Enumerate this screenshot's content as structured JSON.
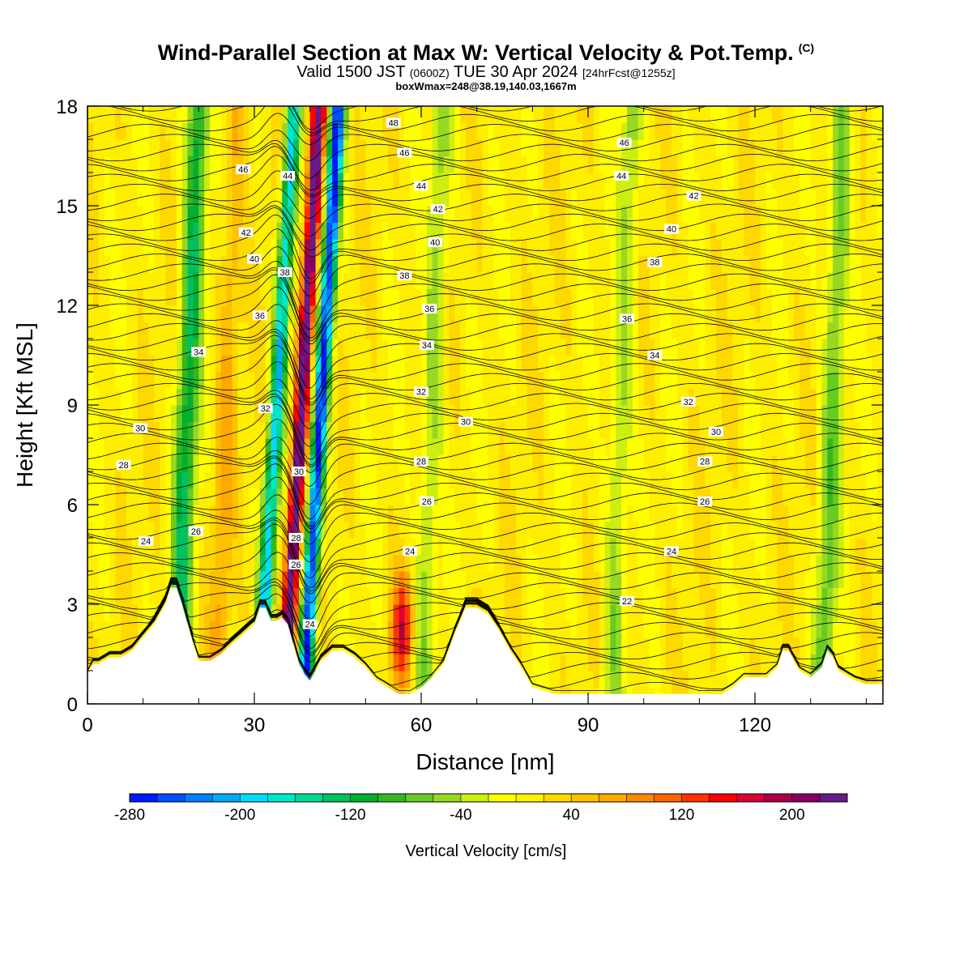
{
  "title": {
    "main": "Wind-Parallel Section at Max W: Vertical Velocity & Pot.Temp.",
    "mark": "(C)",
    "sub_a": "Valid 1500 JST",
    "sub_b": "(0600Z)",
    "sub_c": "TUE 30 Apr 2024",
    "sub_d": "[24hrFcst@1255z]",
    "small": "boxWmax=248@38.19,140.03,1667m"
  },
  "chart_data": {
    "type": "heatmap",
    "title": "Wind-Parallel Section at Max W: Vertical Velocity & Pot.Temp.",
    "xlabel": "Distance [nm]",
    "ylabel": "Height [Kft MSL]",
    "xlim": [
      0,
      143
    ],
    "ylim": [
      0,
      18
    ],
    "x_ticks": [
      0,
      30,
      60,
      90,
      120
    ],
    "y_ticks": [
      0,
      3,
      6,
      9,
      12,
      15,
      18
    ],
    "colorbar": {
      "label": "Vertical Velocity [cm/s]",
      "min": -280,
      "max": 240,
      "step": 20,
      "tick_labels": [
        "-280",
        "-200",
        "-120",
        "-40",
        "40",
        "120",
        "200"
      ],
      "colors": [
        "#0019ff",
        "#0050ff",
        "#0080ff",
        "#00aaff",
        "#00ddff",
        "#00e8cc",
        "#00d890",
        "#00c060",
        "#00b030",
        "#33b820",
        "#66cc22",
        "#99d822",
        "#ccee11",
        "#ffff00",
        "#ffee00",
        "#ffd800",
        "#ffc000",
        "#ffa800",
        "#ff8800",
        "#ff6600",
        "#ff3300",
        "#ff0000",
        "#dd0033",
        "#aa0044",
        "#880066",
        "#6a1a8a"
      ]
    },
    "velocity_features": [
      {
        "type": "downdraft",
        "x": 18,
        "peak": -130
      },
      {
        "type": "updraft",
        "x": 25,
        "peak": 50
      },
      {
        "type": "downdraft",
        "x": 34,
        "peak": -200
      },
      {
        "type": "updraft",
        "x": 38.5,
        "peak": 248
      },
      {
        "type": "downdraft",
        "x": 42,
        "peak": -280
      },
      {
        "type": "updraft",
        "x": 58,
        "peak": 150
      },
      {
        "type": "downdraft",
        "x": 62,
        "peak": -60
      },
      {
        "type": "downdraft",
        "x": 96,
        "peak": -60
      },
      {
        "type": "downdraft",
        "x": 134,
        "peak": -80
      }
    ],
    "terrain_kft": {
      "x": [
        0,
        1,
        2,
        4,
        6,
        8,
        10,
        12,
        14,
        15,
        16,
        17,
        18,
        19,
        20,
        22,
        24,
        26,
        28,
        30,
        31,
        32,
        33,
        34,
        35,
        36,
        37,
        38,
        39,
        40,
        41,
        42,
        44,
        46,
        48,
        50,
        52,
        54,
        56,
        58,
        60,
        62,
        64,
        66,
        68,
        70,
        72,
        74,
        76,
        78,
        80,
        84,
        90,
        100,
        110,
        114,
        116,
        118,
        120,
        122,
        124,
        125,
        126,
        127,
        128,
        130,
        132,
        133,
        134,
        135,
        136,
        138,
        140,
        142,
        143
      ],
      "h": [
        0.9,
        1.2,
        1.2,
        1.4,
        1.4,
        1.6,
        2.0,
        2.4,
        3.0,
        3.5,
        3.5,
        3.0,
        2.4,
        1.8,
        1.3,
        1.3,
        1.5,
        1.8,
        2.1,
        2.4,
        2.9,
        2.9,
        2.5,
        2.5,
        2.6,
        2.4,
        1.8,
        1.2,
        0.9,
        0.7,
        1.0,
        1.3,
        1.6,
        1.6,
        1.4,
        1.1,
        0.7,
        0.5,
        0.3,
        0.3,
        0.5,
        0.8,
        1.2,
        2.1,
        2.9,
        2.9,
        2.7,
        2.2,
        1.6,
        1.1,
        0.5,
        0.3,
        0.3,
        0.3,
        0.3,
        0.3,
        0.5,
        0.8,
        0.8,
        0.8,
        1.1,
        1.6,
        1.6,
        1.3,
        1.0,
        0.8,
        1.1,
        1.6,
        1.4,
        1.0,
        0.9,
        0.7,
        0.6,
        0.6,
        0.6
      ]
    },
    "isentropes": {
      "label": "Pot.Temp.",
      "levels": [
        22,
        24,
        26,
        28,
        30,
        32,
        34,
        36,
        38,
        40,
        42,
        44,
        46,
        48
      ],
      "labels": [
        {
          "x": 10.5,
          "y": 4.9,
          "text": "24"
        },
        {
          "x": 19.5,
          "y": 5.2,
          "text": "26"
        },
        {
          "x": 6.5,
          "y": 7.2,
          "text": "28"
        },
        {
          "x": 9.5,
          "y": 8.3,
          "text": "30"
        },
        {
          "x": 32,
          "y": 8.9,
          "text": "32"
        },
        {
          "x": 20,
          "y": 10.6,
          "text": "34"
        },
        {
          "x": 31,
          "y": 11.7,
          "text": "36"
        },
        {
          "x": 35.5,
          "y": 13.0,
          "text": "38"
        },
        {
          "x": 30,
          "y": 13.4,
          "text": "40"
        },
        {
          "x": 28.5,
          "y": 14.2,
          "text": "42"
        },
        {
          "x": 36,
          "y": 15.9,
          "text": "44"
        },
        {
          "x": 28,
          "y": 16.1,
          "text": "46"
        },
        {
          "x": 55,
          "y": 17.5,
          "text": "48"
        },
        {
          "x": 57,
          "y": 16.6,
          "text": "46"
        },
        {
          "x": 60,
          "y": 15.6,
          "text": "44"
        },
        {
          "x": 63,
          "y": 14.9,
          "text": "42"
        },
        {
          "x": 62.5,
          "y": 13.9,
          "text": "40"
        },
        {
          "x": 57,
          "y": 12.9,
          "text": "38"
        },
        {
          "x": 61.5,
          "y": 11.9,
          "text": "36"
        },
        {
          "x": 61,
          "y": 10.8,
          "text": "34"
        },
        {
          "x": 60,
          "y": 9.4,
          "text": "32"
        },
        {
          "x": 68,
          "y": 8.5,
          "text": "30"
        },
        {
          "x": 60,
          "y": 7.3,
          "text": "28"
        },
        {
          "x": 61,
          "y": 6.1,
          "text": "26"
        },
        {
          "x": 58,
          "y": 4.6,
          "text": "24"
        },
        {
          "x": 96.5,
          "y": 16.9,
          "text": "46"
        },
        {
          "x": 96,
          "y": 15.9,
          "text": "44"
        },
        {
          "x": 109,
          "y": 15.3,
          "text": "42"
        },
        {
          "x": 105,
          "y": 14.3,
          "text": "40"
        },
        {
          "x": 102,
          "y": 13.3,
          "text": "38"
        },
        {
          "x": 97,
          "y": 11.6,
          "text": "36"
        },
        {
          "x": 102,
          "y": 10.5,
          "text": "34"
        },
        {
          "x": 108,
          "y": 9.1,
          "text": "32"
        },
        {
          "x": 113,
          "y": 8.2,
          "text": "30"
        },
        {
          "x": 111,
          "y": 7.3,
          "text": "28"
        },
        {
          "x": 111,
          "y": 6.1,
          "text": "26"
        },
        {
          "x": 105,
          "y": 4.6,
          "text": "24"
        },
        {
          "x": 97,
          "y": 3.1,
          "text": "22"
        },
        {
          "x": 38,
          "y": 7.0,
          "text": "30"
        },
        {
          "x": 37.5,
          "y": 5.0,
          "text": "28"
        },
        {
          "x": 37.5,
          "y": 4.2,
          "text": "26"
        },
        {
          "x": 40,
          "y": 2.4,
          "text": "24"
        }
      ]
    },
    "grid": false
  }
}
